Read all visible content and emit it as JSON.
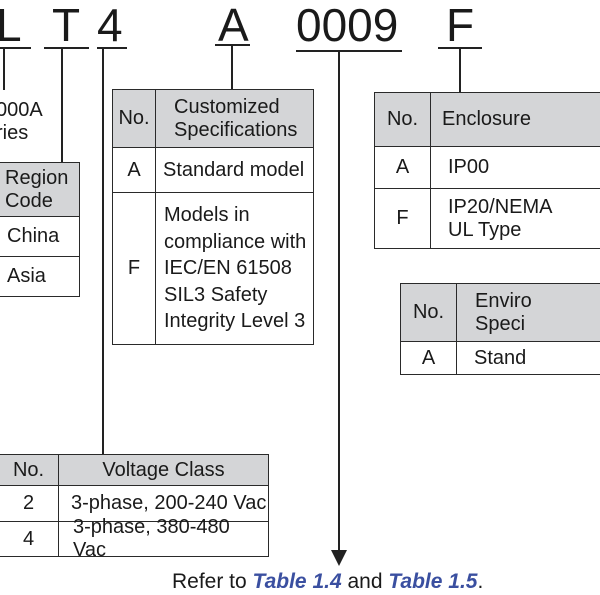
{
  "model_code": [
    "L",
    "T",
    "4",
    "A",
    "0009",
    "F"
  ],
  "series_label": [
    "000A",
    "ries"
  ],
  "region_table": {
    "header": "Region Code",
    "rows": [
      "China",
      "Asia"
    ]
  },
  "customized_table": {
    "headers": [
      "No.",
      "Customized Specifications"
    ],
    "rows": [
      {
        "no": "A",
        "desc": "Standard model"
      },
      {
        "no": "F",
        "desc": "Models in compliance with IEC/EN 61508 SIL3 Safety Integrity Level 3"
      }
    ]
  },
  "enclosure_table": {
    "headers": [
      "No.",
      "Enclosure"
    ],
    "rows": [
      {
        "no": "A",
        "desc": "IP00"
      },
      {
        "no": "F",
        "desc": "IP20/NEMA UL Type"
      }
    ]
  },
  "environment_table": {
    "headers": [
      "No.",
      "Enviro Speci"
    ],
    "rows": [
      {
        "no": "A",
        "desc": "Stand"
      }
    ]
  },
  "voltage_table": {
    "headers": [
      "No.",
      "Voltage Class"
    ],
    "rows": [
      {
        "no": "2",
        "desc": "3-phase, 200-240 Vac"
      },
      {
        "no": "4",
        "desc": "3-phase, 380-480 Vac"
      }
    ]
  },
  "footer": {
    "prefix": "Refer to ",
    "link1": "Table 1.4",
    "mid": " and ",
    "link2": "Table 1.5",
    "suffix": "."
  },
  "colors": {
    "header_bg": "#d4d5d7",
    "link": "#3a4fa0"
  }
}
